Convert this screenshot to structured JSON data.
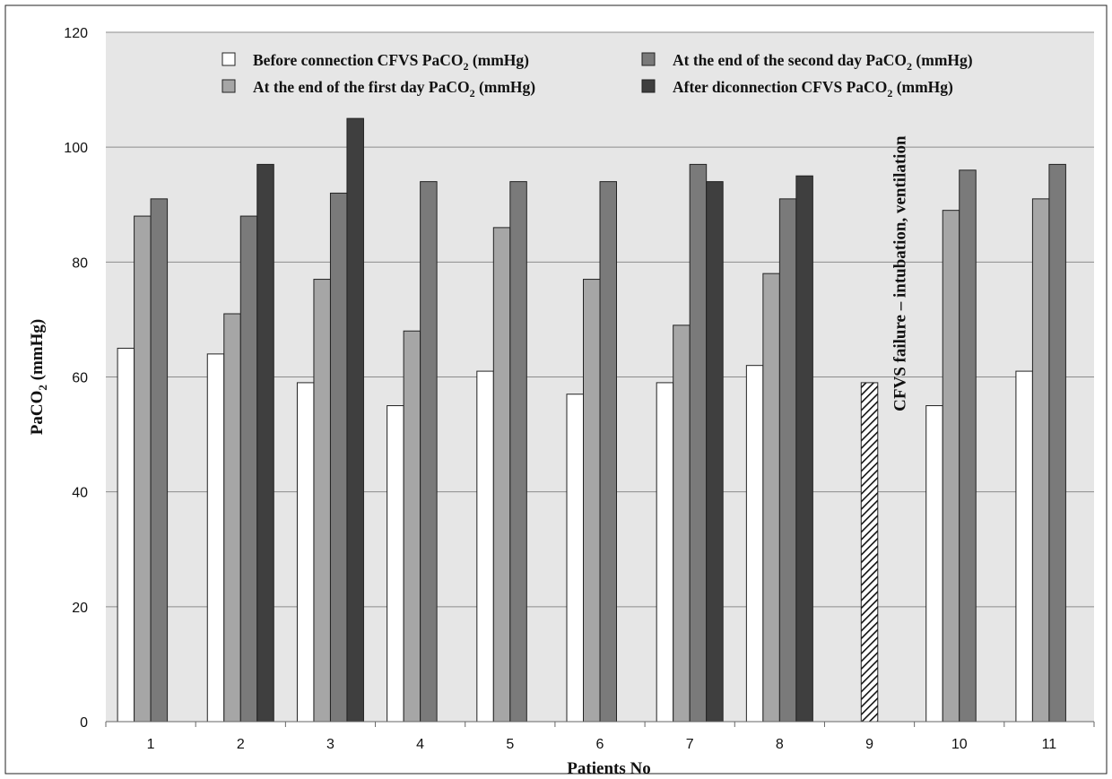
{
  "chart_data": {
    "type": "bar",
    "title": "",
    "xlabel": "Patients No",
    "ylabel": "PaCO",
    "ylabel_sub": "2",
    "ylabel_unit": " (mmHg)",
    "categories": [
      "1",
      "2",
      "3",
      "4",
      "5",
      "6",
      "7",
      "8",
      "9",
      "10",
      "11"
    ],
    "ylim": [
      0,
      120
    ],
    "yticks": [
      "0",
      "20",
      "40",
      "60",
      "80",
      "100",
      "120"
    ],
    "grid": true,
    "legend_position": "top",
    "series": [
      {
        "name": "Before connection CFVS PaCO2 (mmHg)",
        "color": "#ffffff",
        "values": [
          65,
          64,
          59,
          55,
          61,
          57,
          59,
          62,
          null,
          55,
          61
        ]
      },
      {
        "name": "At the end of the first day PaCO2 (mmHg)",
        "color": "#a6a6a6",
        "values": [
          88,
          71,
          77,
          68,
          86,
          77,
          69,
          78,
          null,
          89,
          91
        ]
      },
      {
        "name": "At the end of the second day PaCO2 (mmHg)",
        "color": "#7a7a7a",
        "values": [
          91,
          88,
          92,
          94,
          94,
          94,
          97,
          91,
          null,
          96,
          97
        ]
      },
      {
        "name": "After diconnection CFVS PaCO2 (mmHg)",
        "color": "#3f3f3f",
        "values": [
          null,
          97,
          105,
          null,
          null,
          null,
          94,
          95,
          null,
          null,
          null
        ]
      }
    ],
    "special_bar": {
      "category": "9",
      "value": 59,
      "pattern": "diagonal-hatch"
    },
    "annotation": "CFVS failure – intubation, ventilation",
    "legend_labels": [
      {
        "pre": "Before connection CFVS PaCO",
        "sub": "2",
        "post": " (mmHg)"
      },
      {
        "pre": "At the end of the first day PaCO",
        "sub": "2",
        "post": " (mmHg)"
      },
      {
        "pre": "At the end of the second day PaCO",
        "sub": "2",
        "post": " (mmHg)"
      },
      {
        "pre": "After diconnection CFVS PaCO",
        "sub": "2",
        "post": " (mmHg)"
      }
    ],
    "plot_background": "#e6e6e6"
  }
}
